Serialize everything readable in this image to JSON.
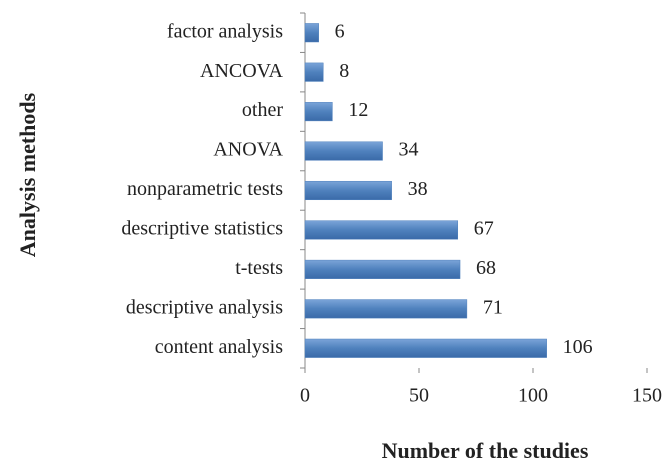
{
  "chart_data": {
    "type": "hbar",
    "categories": [
      "factor analysis",
      "ANCOVA",
      "other",
      "ANOVA",
      "nonparametric tests",
      "descriptive statistics",
      "t-tests",
      "descriptive analysis",
      "content analysis"
    ],
    "values": [
      6,
      8,
      12,
      34,
      38,
      67,
      68,
      71,
      106
    ],
    "color": "#4f81bd",
    "xlim": [
      0,
      150
    ],
    "xticks": [
      0,
      50,
      100,
      150
    ],
    "xlabel": "Number of the studies",
    "ylabel": "Analysis methods",
    "grid": false
  }
}
